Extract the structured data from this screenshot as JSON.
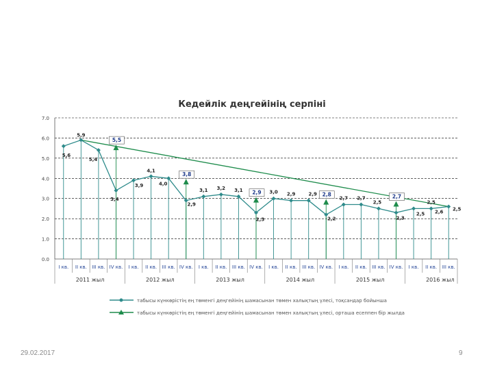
{
  "footer": {
    "date": "29.02.2017",
    "page_number": "9"
  },
  "colors": {
    "series1": "#2E8B8B",
    "series2": "#1E8C4C",
    "title": "#333333",
    "gridline": "#000000",
    "axis_text": "#2A4A9A"
  },
  "chart_data": {
    "type": "line",
    "title": "Кедейлік деңгейінің серпіні",
    "ylim": [
      0,
      7
    ],
    "yticks": [
      "0.0",
      "1.0",
      "2.0",
      "3.0",
      "4.0",
      "5.0",
      "6.0",
      "7.0"
    ],
    "categories": [
      "I кв.",
      "II кв.",
      "III кв.",
      "IV кв.",
      "I кв.",
      "II кв.",
      "III кв.",
      "IV кв.",
      "I кв.",
      "II кв.",
      "III кв.",
      "IV кв.",
      "I кв.",
      "II кв.",
      "III кв.",
      "IV кв.",
      "I кв.",
      "II кв.",
      "III кв.",
      "IV кв.",
      "I кв.",
      "II кв.",
      "III кв."
    ],
    "year_labels": [
      {
        "label": "2011 жыл",
        "from": 0,
        "to": 3
      },
      {
        "label": "2012 жыл",
        "from": 4,
        "to": 7
      },
      {
        "label": "2013 жыл",
        "from": 8,
        "to": 11
      },
      {
        "label": "2014 жыл",
        "from": 12,
        "to": 15
      },
      {
        "label": "2015 жыл",
        "from": 16,
        "to": 19
      },
      {
        "label": "2016 жыл",
        "from": 20,
        "to": 22
      }
    ],
    "series": [
      {
        "name": "табысы күнкөрістің ең төменгі деңгейінің шамасынан төмен халықтың үлесі, тоқсандар бойынша",
        "marker": "diamond",
        "values": [
          5.6,
          5.9,
          5.4,
          3.4,
          3.9,
          4.1,
          4.0,
          2.9,
          3.1,
          3.2,
          3.1,
          2.3,
          3.0,
          2.9,
          2.9,
          2.2,
          2.7,
          2.7,
          2.5,
          2.3,
          2.5,
          2.5,
          2.6
        ],
        "labels": [
          "5,6",
          "5,9",
          "5,4",
          "3,4",
          "3,9",
          "4,1",
          "4,0",
          "2,9",
          "3,1",
          "3,2",
          "3,1",
          "2,3",
          "3,0",
          "2,9",
          "2,9",
          "2,2",
          "2,7",
          "2,7",
          "2,5",
          "2,3",
          "2,5",
          "2,5",
          "2,6"
        ]
      },
      {
        "name": "табысы күнкөрістің ең төменгі деңгейінің шамасынан төмен халықтың үлесі, орташа есеппен бір жылда",
        "marker": "triangle",
        "points": [
          {
            "index": 3,
            "value": 5.5,
            "label": "5,5"
          },
          {
            "index": 7,
            "value": 3.8,
            "label": "3,8"
          },
          {
            "index": 11,
            "value": 2.9,
            "label": "2,9"
          },
          {
            "index": 15,
            "value": 2.8,
            "label": "2,8"
          },
          {
            "index": 19,
            "value": 2.7,
            "label": "2,7"
          }
        ]
      }
    ],
    "trendline": {
      "from": {
        "index": 1,
        "value": 5.9
      },
      "to": {
        "index": 22,
        "value": 2.6
      }
    },
    "extra_label": "2,5"
  }
}
